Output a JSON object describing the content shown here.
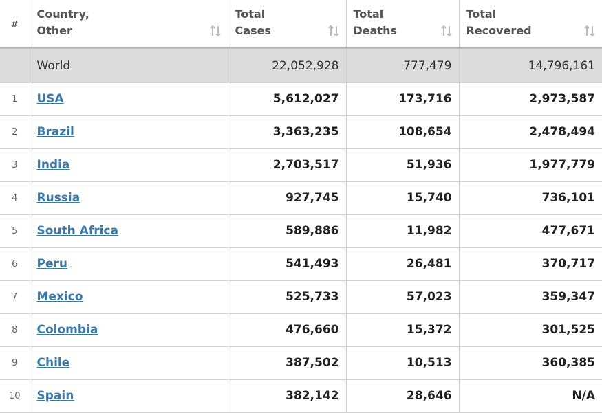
{
  "table": {
    "header": [
      "#",
      "Country, Other",
      "Total Cases",
      "Total Deaths",
      "Total Recovered"
    ],
    "world": [
      "World",
      "22,052,928",
      "777,479",
      "14,796,161"
    ],
    "rows": [
      [
        "1",
        "USA",
        "5,612,027",
        "173,716",
        "2,973,587"
      ],
      [
        "2",
        "Brazil",
        "3,363,235",
        "108,654",
        "2,478,494"
      ],
      [
        "3",
        "India",
        "2,703,517",
        "51,936",
        "1,977,779"
      ],
      [
        "4",
        "Russia",
        "927,745",
        "15,740",
        "736,101"
      ],
      [
        "5",
        "South Africa",
        "589,886",
        "11,982",
        "477,671"
      ],
      [
        "6",
        "Peru",
        "541,493",
        "26,481",
        "370,717"
      ],
      [
        "7",
        "Mexico",
        "525,733",
        "57,023",
        "359,347"
      ],
      [
        "8",
        "Colombia",
        "476,660",
        "15,372",
        "301,525"
      ],
      [
        "9",
        "Chile",
        "387,502",
        "10,513",
        "360,385"
      ],
      [
        "10",
        "Spain",
        "382,142",
        "28,646",
        "N/A"
      ]
    ]
  }
}
